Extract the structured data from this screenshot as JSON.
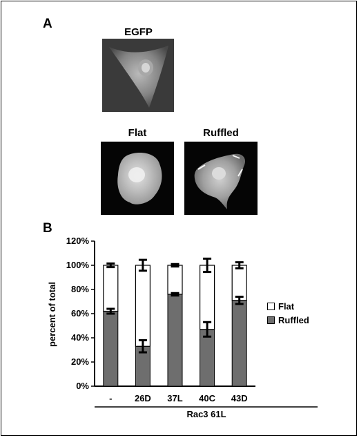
{
  "panel_a": {
    "label": "A",
    "images": [
      {
        "title": "EGFP",
        "description_icon": "cell-micrograph"
      },
      {
        "title": "Flat",
        "description_icon": "cell-micrograph"
      },
      {
        "title": "Ruffled",
        "description_icon": "cell-micrograph"
      }
    ]
  },
  "panel_b": {
    "label": "B",
    "group_label": "Rac3 61L"
  },
  "colors": {
    "ruffled": "#6e6e6e",
    "flat": "#ffffff",
    "axis": "#000000"
  },
  "chart_data": {
    "type": "bar",
    "stacked": true,
    "categories": [
      "-",
      "26D",
      "37L",
      "40C",
      "43D"
    ],
    "series": [
      {
        "name": "Ruffled",
        "values": [
          62,
          33,
          76,
          47,
          71
        ],
        "errors": [
          2,
          5,
          1,
          6,
          3
        ]
      },
      {
        "name": "Flat",
        "values": [
          38,
          67,
          24,
          53,
          29
        ],
        "errors": [
          1.5,
          4.5,
          1,
          5.5,
          2.5
        ]
      }
    ],
    "ylabel": "percent of total",
    "xlabel": "Rac3 61L",
    "ylim": [
      0,
      120
    ],
    "yticks": [
      "0%",
      "20%",
      "40%",
      "60%",
      "80%",
      "100%",
      "120%"
    ],
    "legend": [
      "Flat",
      "Ruffled"
    ],
    "legend_position": "right",
    "grid": false
  }
}
